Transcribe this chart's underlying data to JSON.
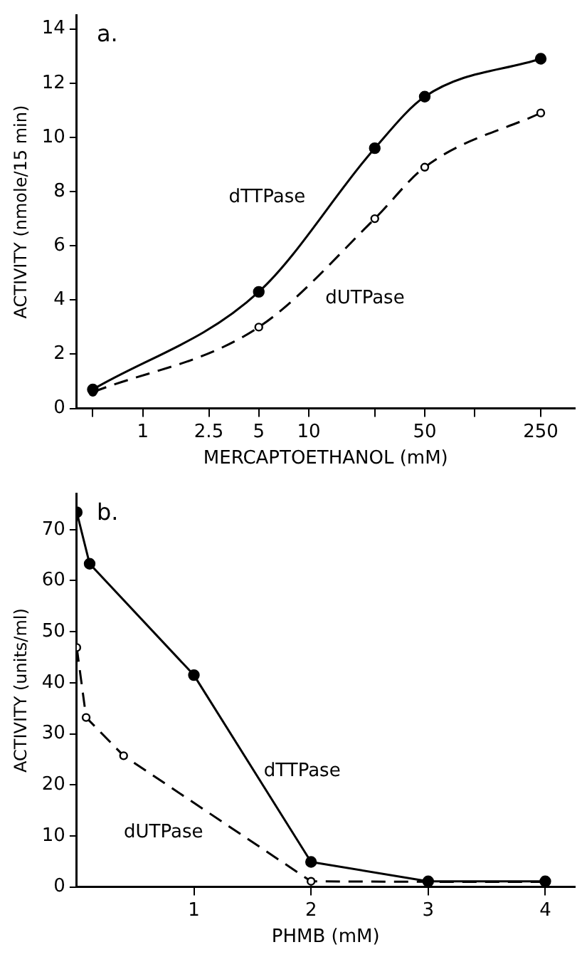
{
  "chart_data": [
    {
      "type": "line",
      "annotations": [
        "a."
      ],
      "xlabel": "MERCAPTOETHANOL (mM)",
      "ylabel": "ACTIVITY (nmole/15 min)",
      "log": "x",
      "x": [
        0.5,
        5,
        25,
        50,
        250
      ],
      "xlim": [
        0.4,
        400
      ],
      "xticks": [
        {
          "value": 0.5,
          "label": null
        },
        1,
        2.5,
        5,
        10,
        {
          "value": 25,
          "label": null
        },
        50,
        {
          "value": 100,
          "label": null
        },
        250
      ],
      "ylim": [
        0,
        14.5
      ],
      "yticks": [
        0,
        2,
        4,
        6,
        8,
        10,
        12,
        14
      ],
      "grid": false,
      "legend": false,
      "series": [
        {
          "name": "dTTPase",
          "color": "#000000",
          "values": [
            0.7,
            4.3,
            9.6,
            11.5,
            12.9
          ],
          "marker": "circle",
          "line_style": "solid"
        },
        {
          "name": "dUTPase",
          "color": "#000000",
          "values": [
            0.6,
            3.0,
            7.0,
            8.9,
            10.9
          ],
          "marker": "circle",
          "line_style": "dashed"
        }
      ]
    },
    {
      "type": "line",
      "annotations": [
        "b."
      ],
      "xlabel": "PHMB (mM)",
      "ylabel": "ACTIVITY (units/ml)",
      "xlim": [
        0,
        4.25
      ],
      "xticks": [
        1,
        2,
        3,
        4
      ],
      "ylim": [
        0,
        77
      ],
      "yticks": [
        0,
        10,
        20,
        30,
        40,
        50,
        60,
        70
      ],
      "grid": false,
      "legend": false,
      "series": [
        {
          "name": "dTTPase",
          "color": "#000000",
          "x": [
            0,
            0.11,
            1,
            2,
            3,
            4
          ],
          "values": [
            73.4,
            63.3,
            41.5,
            4.9,
            1.1,
            1.1
          ],
          "marker": "circle",
          "line_style": "solid"
        },
        {
          "name": "dUTPase",
          "color": "#000000",
          "x": [
            0,
            0.08,
            0.4,
            2,
            3,
            4
          ],
          "values": [
            46.9,
            33.2,
            25.7,
            1.1,
            1.0,
            1.0
          ],
          "marker": "circle",
          "line_style": "dashed"
        }
      ]
    }
  ]
}
